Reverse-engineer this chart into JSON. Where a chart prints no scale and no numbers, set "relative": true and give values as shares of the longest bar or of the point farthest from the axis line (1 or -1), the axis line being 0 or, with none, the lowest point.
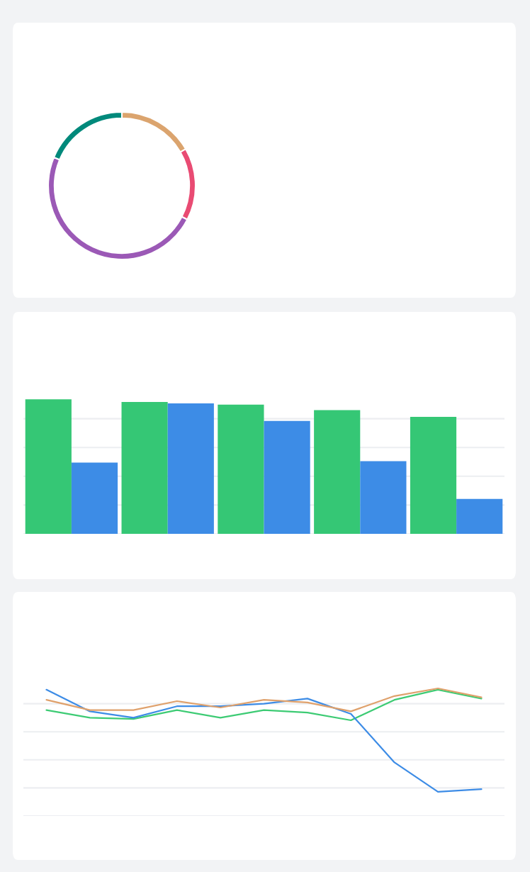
{
  "chart_data": [
    {
      "type": "donut",
      "categories": [
        null,
        null,
        null,
        null
      ],
      "values": [
        16.7,
        15.9,
        48.7,
        18.7
      ],
      "colors": [
        "#dba46e",
        "#e94b73",
        "#9b59b6",
        "#00897b"
      ],
      "legend": false
    },
    {
      "type": "bar",
      "relative": true,
      "grid": "y",
      "legend": false,
      "categories": [
        null,
        null,
        null,
        null,
        null
      ],
      "series": [
        {
          "color": "#35c775",
          "values": [
            1,
            0.98,
            0.96,
            0.92,
            0.87
          ]
        },
        {
          "color": "#3d8ce6",
          "values": [
            0.53,
            0.97,
            0.84,
            0.54,
            0.26
          ]
        }
      ]
    },
    {
      "type": "line",
      "relative": true,
      "grid": "y",
      "legend": false,
      "marker": "none",
      "line_style": "solid",
      "categories": [
        null,
        null,
        null,
        null,
        null,
        null,
        null,
        null,
        null,
        null,
        null
      ],
      "series": [
        {
          "color": "#3dcb74",
          "values": [
            0.83,
            0.77,
            0.76,
            0.83,
            0.77,
            0.83,
            0.81,
            0.75,
            0.91,
            0.99,
            0.92
          ]
        },
        {
          "color": "#3d8ce6",
          "values": [
            0.99,
            0.82,
            0.77,
            0.86,
            0.86,
            0.88,
            0.92,
            0.8,
            0.42,
            0.19,
            0.21
          ]
        },
        {
          "color": "#dfa16c",
          "values": [
            0.91,
            0.83,
            0.83,
            0.9,
            0.85,
            0.91,
            0.89,
            0.82,
            0.94,
            1,
            0.93
          ]
        }
      ]
    }
  ]
}
